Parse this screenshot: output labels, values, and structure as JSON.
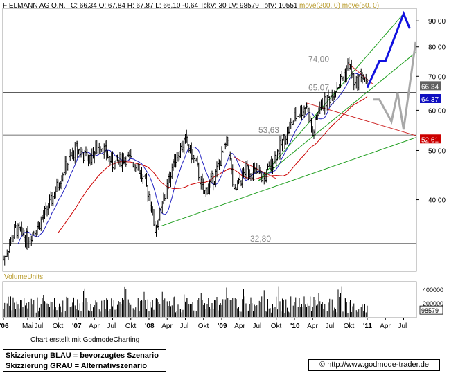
{
  "header": {
    "instrument": "FIELMANN AG O.N.",
    "quote": "C: 66,34  O: 67,84  H: 67,87  L: 66,10  -0,64  TckV: 30  LV: 98579  TotV: 10551",
    "moving_averages": "move(200, 0)  move(50, 0)"
  },
  "volume_label": "VolumeUnits",
  "credit": "Chart erstellt mit GodmodeCharting",
  "legend": {
    "blue": "Skizzierung BLAU = bevorzugtes Szenario",
    "gray": "Skizzierung GRAU = Alternativszenario"
  },
  "url": "© http://www.godmode-trader.de",
  "colors": {
    "price": "#000000",
    "ma50": "#2020c0",
    "ma200": "#cc0000",
    "channel": "#1e9e1e",
    "resistance": "#cc2020",
    "scenario_blue": "#1010e0",
    "scenario_gray": "#a8a8a8",
    "label_current": "#606060",
    "label_ma50": "#1010c0",
    "label_ma200": "#cc0000"
  },
  "chart_data": {
    "type": "candlestick",
    "y_scale": "log",
    "ylim": [
      29,
      95
    ],
    "y_ticks": [
      "40,00",
      "50,00",
      "60,00",
      "70,00",
      "80,00",
      "90,00"
    ],
    "x_ticks": [
      "'06",
      "Mai",
      "Jul",
      "Okt",
      "'07",
      "Apr",
      "Jul",
      "Okt",
      "'08",
      "Apr",
      "Jul",
      "Okt",
      "'09",
      "Apr",
      "Jul",
      "Okt",
      "'10",
      "Apr",
      "Jul",
      "Okt",
      "'11",
      "Apr",
      "Jul"
    ],
    "xlim": [
      "2006-01",
      "2011-09"
    ],
    "last_values": {
      "close": "66,34",
      "ma50": "64,37",
      "ma200": "52,61"
    },
    "price_path": [
      [
        "2006-01",
        30.5
      ],
      [
        "2006-03",
        35.0
      ],
      [
        "2006-05",
        33.5
      ],
      [
        "2006-07",
        36.0
      ],
      [
        "2006-09",
        40.0
      ],
      [
        "2006-11",
        46.0
      ],
      [
        "2007-01",
        50.5
      ],
      [
        "2007-03",
        48.0
      ],
      [
        "2007-05",
        51.5
      ],
      [
        "2007-07",
        47.0
      ],
      [
        "2007-09",
        48.5
      ],
      [
        "2007-11",
        47.0
      ],
      [
        "2008-01",
        41.0
      ],
      [
        "2008-02",
        35.0
      ],
      [
        "2008-03",
        38.0
      ],
      [
        "2008-05",
        47.5
      ],
      [
        "2008-07",
        52.5
      ],
      [
        "2008-09",
        46.0
      ],
      [
        "2008-10",
        41.0
      ],
      [
        "2008-12",
        45.0
      ],
      [
        "2009-02",
        52.5
      ],
      [
        "2009-03",
        41.0
      ],
      [
        "2009-05",
        46.0
      ],
      [
        "2009-07",
        45.0
      ],
      [
        "2009-08",
        44.0
      ],
      [
        "2009-09",
        46.5
      ],
      [
        "2009-11",
        52.0
      ],
      [
        "2010-01",
        58.0
      ],
      [
        "2010-03",
        61.5
      ],
      [
        "2010-04",
        53.5
      ],
      [
        "2010-05",
        60.5
      ],
      [
        "2010-07",
        64.0
      ],
      [
        "2010-09",
        70.0
      ],
      [
        "2010-10",
        74.0
      ],
      [
        "2010-11",
        67.0
      ],
      [
        "2010-12",
        71.0
      ],
      [
        "2011-01",
        66.34
      ]
    ],
    "volume": {
      "ticks": [
        "200000",
        "400000"
      ],
      "last": "98579",
      "ylim": [
        0,
        500000
      ]
    },
    "levels": [
      {
        "label": "32,80",
        "value": 32.8
      },
      {
        "label": "53,63",
        "value": 53.63
      },
      {
        "label": "65,07",
        "value": 65.07
      },
      {
        "label": "74,00",
        "value": 74.0
      }
    ],
    "scenario_blue": [
      [
        "2011-01",
        66.5
      ],
      [
        "2011-03",
        75.0
      ],
      [
        "2011-04",
        75.0
      ],
      [
        "2011-07",
        93.0
      ],
      [
        "2011-08",
        87.0
      ]
    ],
    "scenario_gray": [
      [
        "2011-02",
        63.0
      ],
      [
        "2011-03",
        63.0
      ],
      [
        "2011-05",
        57.0
      ],
      [
        "2011-06",
        65.0
      ],
      [
        "2011-07",
        55.0
      ],
      [
        "2011-09",
        82.0
      ]
    ]
  }
}
